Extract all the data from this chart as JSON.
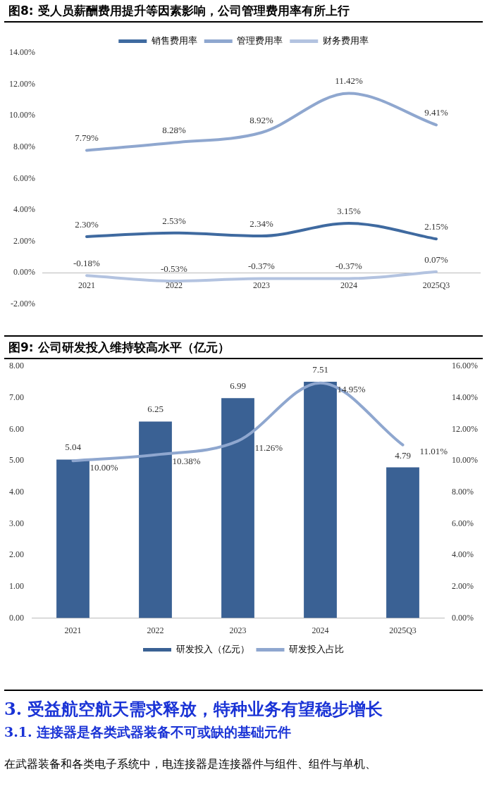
{
  "chart_data": [
    {
      "type": "line",
      "title": "图8:  受人员薪酬费用提升等因素影响，公司管理费用率有所上行",
      "categories": [
        "2021",
        "2022",
        "2023",
        "2024",
        "2025Q3"
      ],
      "series": [
        {
          "name": "销售费用率",
          "color": "#3f6aa0",
          "values": [
            2.3,
            2.53,
            2.34,
            3.15,
            2.15
          ],
          "value_labels": [
            "2.30%",
            "2.53%",
            "2.34%",
            "3.15%",
            "2.15%"
          ]
        },
        {
          "name": "管理费用率",
          "color": "#8fa7cf",
          "values": [
            7.79,
            8.28,
            8.92,
            11.42,
            9.41
          ],
          "value_labels": [
            "7.79%",
            "8.28%",
            "8.92%",
            "11.42%",
            "9.41%"
          ]
        },
        {
          "name": "财务费用率",
          "color": "#b3c3e0",
          "values": [
            -0.18,
            -0.53,
            -0.37,
            -0.37,
            0.07
          ],
          "value_labels": [
            "-0.18%",
            "-0.53%",
            "-0.37%",
            "-0.37%",
            "0.07%"
          ]
        }
      ],
      "ylim": [
        -2,
        14
      ],
      "yticks": [
        {
          "value": -2,
          "label": "-2.00%"
        },
        {
          "value": 0,
          "label": "0.00%"
        },
        {
          "value": 2,
          "label": "2.00%"
        },
        {
          "value": 4,
          "label": "4.00%"
        },
        {
          "value": 6,
          "label": "6.00%"
        },
        {
          "value": 8,
          "label": "8.00%"
        },
        {
          "value": 10,
          "label": "10.00%"
        },
        {
          "value": 12,
          "label": "12.00%"
        },
        {
          "value": 14,
          "label": "14.00%"
        }
      ],
      "legend": "top",
      "grid": false,
      "marker": "none",
      "line_style": "solid"
    },
    {
      "type": "bar",
      "title": "图9:  公司研发投入维持较高水平（亿元）",
      "categories": [
        "2021",
        "2022",
        "2023",
        "2024",
        "2025Q3"
      ],
      "series": [
        {
          "name": "研发投入（亿元）",
          "color": "#3a6194",
          "values": [
            5.04,
            6.25,
            6.99,
            7.51,
            4.79
          ],
          "value_labels": [
            "5.04",
            "6.25",
            "6.99",
            "7.51",
            "4.79"
          ]
        },
        {
          "name": "研发投入占比",
          "type": "line",
          "axis": "y2",
          "color": "#8fa7cf",
          "values": [
            10.0,
            10.38,
            11.26,
            14.95,
            11.01
          ],
          "value_labels": [
            "10.00%",
            "10.38%",
            "11.26%",
            "14.95%",
            "11.01%"
          ]
        }
      ],
      "ylim": [
        0,
        8
      ],
      "yticks": [
        {
          "value": 0,
          "label": "0.00"
        },
        {
          "value": 1,
          "label": "1.00"
        },
        {
          "value": 2,
          "label": "2.00"
        },
        {
          "value": 3,
          "label": "3.00"
        },
        {
          "value": 4,
          "label": "4.00"
        },
        {
          "value": 5,
          "label": "5.00"
        },
        {
          "value": 6,
          "label": "6.00"
        },
        {
          "value": 7,
          "label": "7.00"
        },
        {
          "value": 8,
          "label": "8.00"
        }
      ],
      "y2lim": [
        0,
        16
      ],
      "y2ticks": [
        {
          "value": 0,
          "label": "0.00%"
        },
        {
          "value": 2,
          "label": "2.00%"
        },
        {
          "value": 4,
          "label": "4.00%"
        },
        {
          "value": 6,
          "label": "6.00%"
        },
        {
          "value": 8,
          "label": "8.00%"
        },
        {
          "value": 10,
          "label": "10.00%"
        },
        {
          "value": 12,
          "label": "12.00%"
        },
        {
          "value": 14,
          "label": "14.00%"
        },
        {
          "value": 16,
          "label": "16.00%"
        }
      ],
      "legend": "bottom",
      "grid": false,
      "marker": "none"
    },
    {
      "type": "other",
      "title": "3.  受益航空航天需求释放，特种业务有望稳步增长",
      "subtitle": "3.1.  连接器是各类武器装备不可或缺的基础元件",
      "annotations": [
        "在武器装备和各类电子系统中，电连接器是连接器件与组件、组件与单机、"
      ]
    }
  ]
}
